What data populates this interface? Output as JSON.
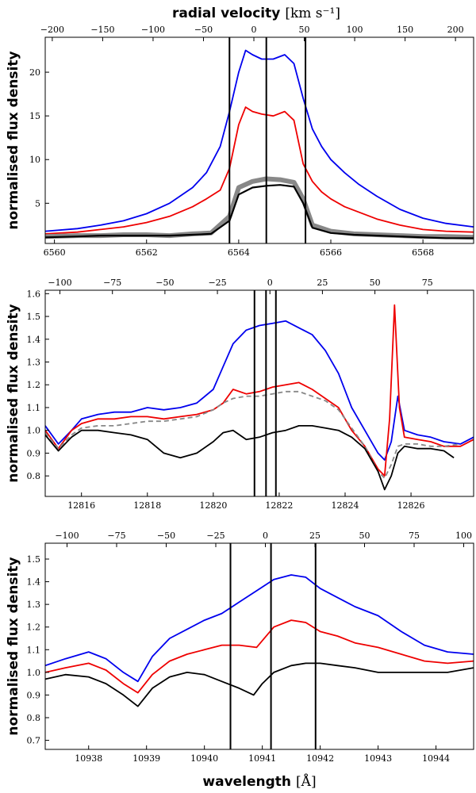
{
  "top_axis": {
    "label": "radial velocity",
    "unit": "[km s⁻¹]"
  },
  "bottom_axis": {
    "label": "wavelength",
    "unit": "[Å]"
  },
  "chart_data": [
    {
      "type": "line",
      "title": "",
      "xlabel": "",
      "ylabel": "normalised flux density",
      "top_xlabel": "radial velocity [km s^-1]",
      "xlim": [
        6559.8,
        6569.1
      ],
      "ylim": [
        0.4,
        24.0
      ],
      "xticks": [
        6560,
        6562,
        6564,
        6566,
        6568
      ],
      "yticks": [
        5,
        10,
        15,
        20
      ],
      "top_xticks": [
        -200,
        -150,
        -100,
        -50,
        0,
        50,
        100,
        150,
        200
      ],
      "top_xlim": [
        -207,
        218
      ],
      "vlines": [
        6563.8,
        6564.6,
        6565.45
      ],
      "series": [
        {
          "name": "blue",
          "color": "#0000ee",
          "x": [
            6559.8,
            6560.5,
            6561.0,
            6561.5,
            6562.0,
            6562.5,
            6563.0,
            6563.3,
            6563.6,
            6563.8,
            6564.0,
            6564.15,
            6564.3,
            6564.5,
            6564.75,
            6565.0,
            6565.2,
            6565.4,
            6565.6,
            6565.8,
            6566.0,
            6566.3,
            6566.6,
            6567.0,
            6567.5,
            6568.0,
            6568.5,
            6569.1
          ],
          "y": [
            1.8,
            2.1,
            2.5,
            3.0,
            3.8,
            5.0,
            6.8,
            8.5,
            11.5,
            15.5,
            20.0,
            22.5,
            22.0,
            21.5,
            21.5,
            22.0,
            21.0,
            17.0,
            13.5,
            11.5,
            10.0,
            8.5,
            7.2,
            5.8,
            4.3,
            3.3,
            2.7,
            2.3
          ]
        },
        {
          "name": "red",
          "color": "#ee0000",
          "x": [
            6559.8,
            6560.5,
            6561.0,
            6561.5,
            6562.0,
            6562.5,
            6563.0,
            6563.3,
            6563.6,
            6563.8,
            6564.0,
            6564.15,
            6564.3,
            6564.5,
            6564.75,
            6565.0,
            6565.2,
            6565.4,
            6565.6,
            6565.8,
            6566.0,
            6566.3,
            6566.6,
            6567.0,
            6567.5,
            6568.0,
            6568.5,
            6569.1
          ],
          "y": [
            1.5,
            1.7,
            2.0,
            2.3,
            2.8,
            3.5,
            4.6,
            5.5,
            6.5,
            9.0,
            14.0,
            16.0,
            15.5,
            15.2,
            15.0,
            15.5,
            14.5,
            9.5,
            7.5,
            6.3,
            5.5,
            4.6,
            4.0,
            3.2,
            2.5,
            2.0,
            1.8,
            1.7
          ]
        },
        {
          "name": "gray",
          "color": "#888888",
          "x": [
            6559.8,
            6560.5,
            6561.0,
            6561.5,
            6562.0,
            6562.5,
            6563.0,
            6563.4,
            6563.8,
            6564.0,
            6564.3,
            6564.6,
            6564.9,
            6565.2,
            6565.4,
            6565.6,
            6566.0,
            6566.5,
            6567.0,
            6567.5,
            6568.0,
            6568.5,
            6569.1
          ],
          "y": [
            1.2,
            1.3,
            1.3,
            1.4,
            1.4,
            1.3,
            1.5,
            1.6,
            3.5,
            6.8,
            7.5,
            7.8,
            7.7,
            7.4,
            5.5,
            2.5,
            1.8,
            1.5,
            1.4,
            1.3,
            1.2,
            1.2,
            1.1
          ]
        },
        {
          "name": "black",
          "color": "#000000",
          "x": [
            6559.8,
            6560.5,
            6561.0,
            6561.5,
            6562.0,
            6562.5,
            6563.0,
            6563.4,
            6563.8,
            6564.0,
            6564.3,
            6564.6,
            6564.9,
            6565.2,
            6565.4,
            6565.6,
            6566.0,
            6566.5,
            6567.0,
            6567.5,
            6568.0,
            6568.5,
            6569.1
          ],
          "y": [
            1.1,
            1.2,
            1.3,
            1.3,
            1.3,
            1.3,
            1.4,
            1.5,
            3.0,
            6.0,
            6.8,
            7.0,
            7.1,
            6.9,
            5.0,
            2.2,
            1.6,
            1.4,
            1.3,
            1.2,
            1.1,
            1.0,
            1.0
          ]
        }
      ]
    },
    {
      "type": "line",
      "title": "",
      "xlabel": "",
      "ylabel": "normalised flux density",
      "xlim": [
        12814.9,
        12827.9
      ],
      "ylim": [
        0.71,
        1.615
      ],
      "xticks": [
        12816,
        12818,
        12820,
        12822,
        12824,
        12826
      ],
      "yticks": [
        0.8,
        0.9,
        1.0,
        1.1,
        1.2,
        1.3,
        1.4,
        1.5,
        1.6
      ],
      "top_xticks": [
        -100,
        -75,
        -50,
        -25,
        0,
        25,
        50,
        75
      ],
      "top_xlim": [
        -107,
        97
      ],
      "vlines": [
        12821.25,
        12821.6,
        12821.9
      ],
      "series": [
        {
          "name": "blue",
          "color": "#0000ee",
          "x": [
            12814.9,
            12815.3,
            12815.7,
            12816.0,
            12816.5,
            12817.0,
            12817.5,
            12818.0,
            12818.5,
            12819.0,
            12819.5,
            12820.0,
            12820.3,
            12820.6,
            12821.0,
            12821.4,
            12821.8,
            12822.2,
            12822.6,
            12823.0,
            12823.4,
            12823.8,
            12824.2,
            12824.6,
            12825.0,
            12825.2,
            12825.4,
            12825.6,
            12825.8,
            12826.2,
            12826.6,
            12827.0,
            12827.5,
            12827.9
          ],
          "y": [
            1.02,
            0.94,
            1.0,
            1.05,
            1.07,
            1.08,
            1.08,
            1.1,
            1.09,
            1.1,
            1.12,
            1.18,
            1.28,
            1.38,
            1.44,
            1.46,
            1.47,
            1.48,
            1.45,
            1.42,
            1.35,
            1.25,
            1.1,
            1.0,
            0.9,
            0.87,
            0.95,
            1.15,
            1.0,
            0.98,
            0.97,
            0.95,
            0.94,
            0.97
          ]
        },
        {
          "name": "red",
          "color": "#ee0000",
          "x": [
            12814.9,
            12815.3,
            12815.7,
            12816.0,
            12816.5,
            12817.0,
            12817.5,
            12818.0,
            12818.5,
            12819.0,
            12819.5,
            12820.0,
            12820.3,
            12820.6,
            12821.0,
            12821.4,
            12821.8,
            12822.2,
            12822.6,
            12823.0,
            12823.4,
            12823.8,
            12824.2,
            12824.6,
            12825.0,
            12825.2,
            12825.35,
            12825.5,
            12825.65,
            12825.8,
            12826.2,
            12826.6,
            12827.0,
            12827.5,
            12827.9
          ],
          "y": [
            1.0,
            0.92,
            1.0,
            1.03,
            1.05,
            1.05,
            1.06,
            1.06,
            1.05,
            1.06,
            1.07,
            1.09,
            1.12,
            1.18,
            1.16,
            1.17,
            1.19,
            1.2,
            1.21,
            1.18,
            1.14,
            1.1,
            1.0,
            0.93,
            0.83,
            0.8,
            1.05,
            1.55,
            1.1,
            0.97,
            0.96,
            0.95,
            0.93,
            0.93,
            0.96
          ]
        },
        {
          "name": "gray dashed",
          "color": "#888888",
          "x": [
            12814.9,
            12815.3,
            12815.7,
            12816.0,
            12816.5,
            12817.0,
            12817.5,
            12818.0,
            12818.5,
            12819.0,
            12819.5,
            12820.0,
            12820.3,
            12820.6,
            12821.0,
            12821.4,
            12821.8,
            12822.2,
            12822.6,
            12823.0,
            12823.4,
            12823.8,
            12824.2,
            12824.6,
            12825.0,
            12825.2,
            12825.4,
            12825.6,
            12825.8,
            12826.2,
            12826.6,
            12827.0,
            12827.5
          ],
          "y": [
            0.99,
            0.92,
            0.98,
            1.01,
            1.02,
            1.02,
            1.03,
            1.04,
            1.04,
            1.05,
            1.06,
            1.09,
            1.12,
            1.14,
            1.15,
            1.15,
            1.16,
            1.17,
            1.17,
            1.15,
            1.13,
            1.09,
            1.01,
            0.93,
            0.82,
            0.79,
            0.85,
            0.93,
            0.94,
            0.94,
            0.93,
            0.93,
            0.94
          ]
        },
        {
          "name": "black",
          "color": "#000000",
          "x": [
            12814.9,
            12815.3,
            12815.7,
            12816.0,
            12816.5,
            12817.0,
            12817.5,
            12818.0,
            12818.5,
            12819.0,
            12819.5,
            12820.0,
            12820.3,
            12820.6,
            12821.0,
            12821.4,
            12821.8,
            12822.2,
            12822.6,
            12823.0,
            12823.4,
            12823.8,
            12824.2,
            12824.6,
            12825.0,
            12825.2,
            12825.4,
            12825.6,
            12825.8,
            12826.2,
            12826.6,
            12827.0,
            12827.3
          ],
          "y": [
            0.98,
            0.91,
            0.97,
            1.0,
            1.0,
            0.99,
            0.98,
            0.96,
            0.9,
            0.88,
            0.9,
            0.95,
            0.99,
            1.0,
            0.96,
            0.97,
            0.99,
            1.0,
            1.02,
            1.02,
            1.01,
            1.0,
            0.97,
            0.92,
            0.82,
            0.74,
            0.8,
            0.9,
            0.93,
            0.92,
            0.92,
            0.91,
            0.88
          ]
        }
      ]
    },
    {
      "type": "line",
      "title": "",
      "xlabel": "wavelength [Å]",
      "ylabel": "normalised flux density",
      "xlim": [
        10937.25,
        10944.65
      ],
      "ylim": [
        0.66,
        1.57
      ],
      "xticks": [
        10938,
        10939,
        10940,
        10941,
        10942,
        10943,
        10944
      ],
      "yticks": [
        0.7,
        0.8,
        0.9,
        1.0,
        1.1,
        1.2,
        1.3,
        1.4,
        1.5
      ],
      "top_xticks": [
        -100,
        -75,
        -50,
        -25,
        0,
        25,
        50,
        75,
        100
      ],
      "top_xlim": [
        -111,
        105
      ],
      "vlines": [
        10940.45,
        10941.15,
        10941.92
      ],
      "series": [
        {
          "name": "blue",
          "color": "#0000ee",
          "x": [
            10937.25,
            10937.6,
            10938.0,
            10938.3,
            10938.6,
            10938.85,
            10939.1,
            10939.4,
            10939.7,
            10940.0,
            10940.3,
            10940.6,
            10940.9,
            10941.2,
            10941.5,
            10941.75,
            10942.0,
            10942.3,
            10942.6,
            10943.0,
            10943.4,
            10943.8,
            10944.2,
            10944.65
          ],
          "y": [
            1.03,
            1.06,
            1.09,
            1.06,
            1.0,
            0.96,
            1.07,
            1.15,
            1.19,
            1.23,
            1.26,
            1.31,
            1.36,
            1.41,
            1.43,
            1.42,
            1.37,
            1.33,
            1.29,
            1.25,
            1.18,
            1.12,
            1.09,
            1.08
          ]
        },
        {
          "name": "red",
          "color": "#ee0000",
          "x": [
            10937.25,
            10937.6,
            10938.0,
            10938.3,
            10938.6,
            10938.85,
            10939.1,
            10939.4,
            10939.7,
            10940.0,
            10940.3,
            10940.6,
            10940.9,
            10941.2,
            10941.5,
            10941.75,
            10942.0,
            10942.3,
            10942.6,
            10943.0,
            10943.4,
            10943.8,
            10944.2,
            10944.65
          ],
          "y": [
            1.0,
            1.02,
            1.04,
            1.01,
            0.95,
            0.91,
            0.99,
            1.05,
            1.08,
            1.1,
            1.12,
            1.12,
            1.11,
            1.2,
            1.23,
            1.22,
            1.18,
            1.16,
            1.13,
            1.11,
            1.08,
            1.05,
            1.04,
            1.05
          ]
        },
        {
          "name": "black",
          "color": "#000000",
          "x": [
            10937.25,
            10937.6,
            10938.0,
            10938.3,
            10938.6,
            10938.85,
            10939.1,
            10939.4,
            10939.7,
            10940.0,
            10940.3,
            10940.6,
            10940.85,
            10941.0,
            10941.2,
            10941.5,
            10941.75,
            10942.0,
            10942.3,
            10942.6,
            10943.0,
            10943.4,
            10943.8,
            10944.2,
            10944.65
          ],
          "y": [
            0.97,
            0.99,
            0.98,
            0.95,
            0.9,
            0.85,
            0.93,
            0.98,
            1.0,
            0.99,
            0.96,
            0.93,
            0.9,
            0.95,
            1.0,
            1.03,
            1.04,
            1.04,
            1.03,
            1.02,
            1.0,
            1.0,
            1.0,
            1.0,
            1.02
          ]
        }
      ]
    }
  ]
}
